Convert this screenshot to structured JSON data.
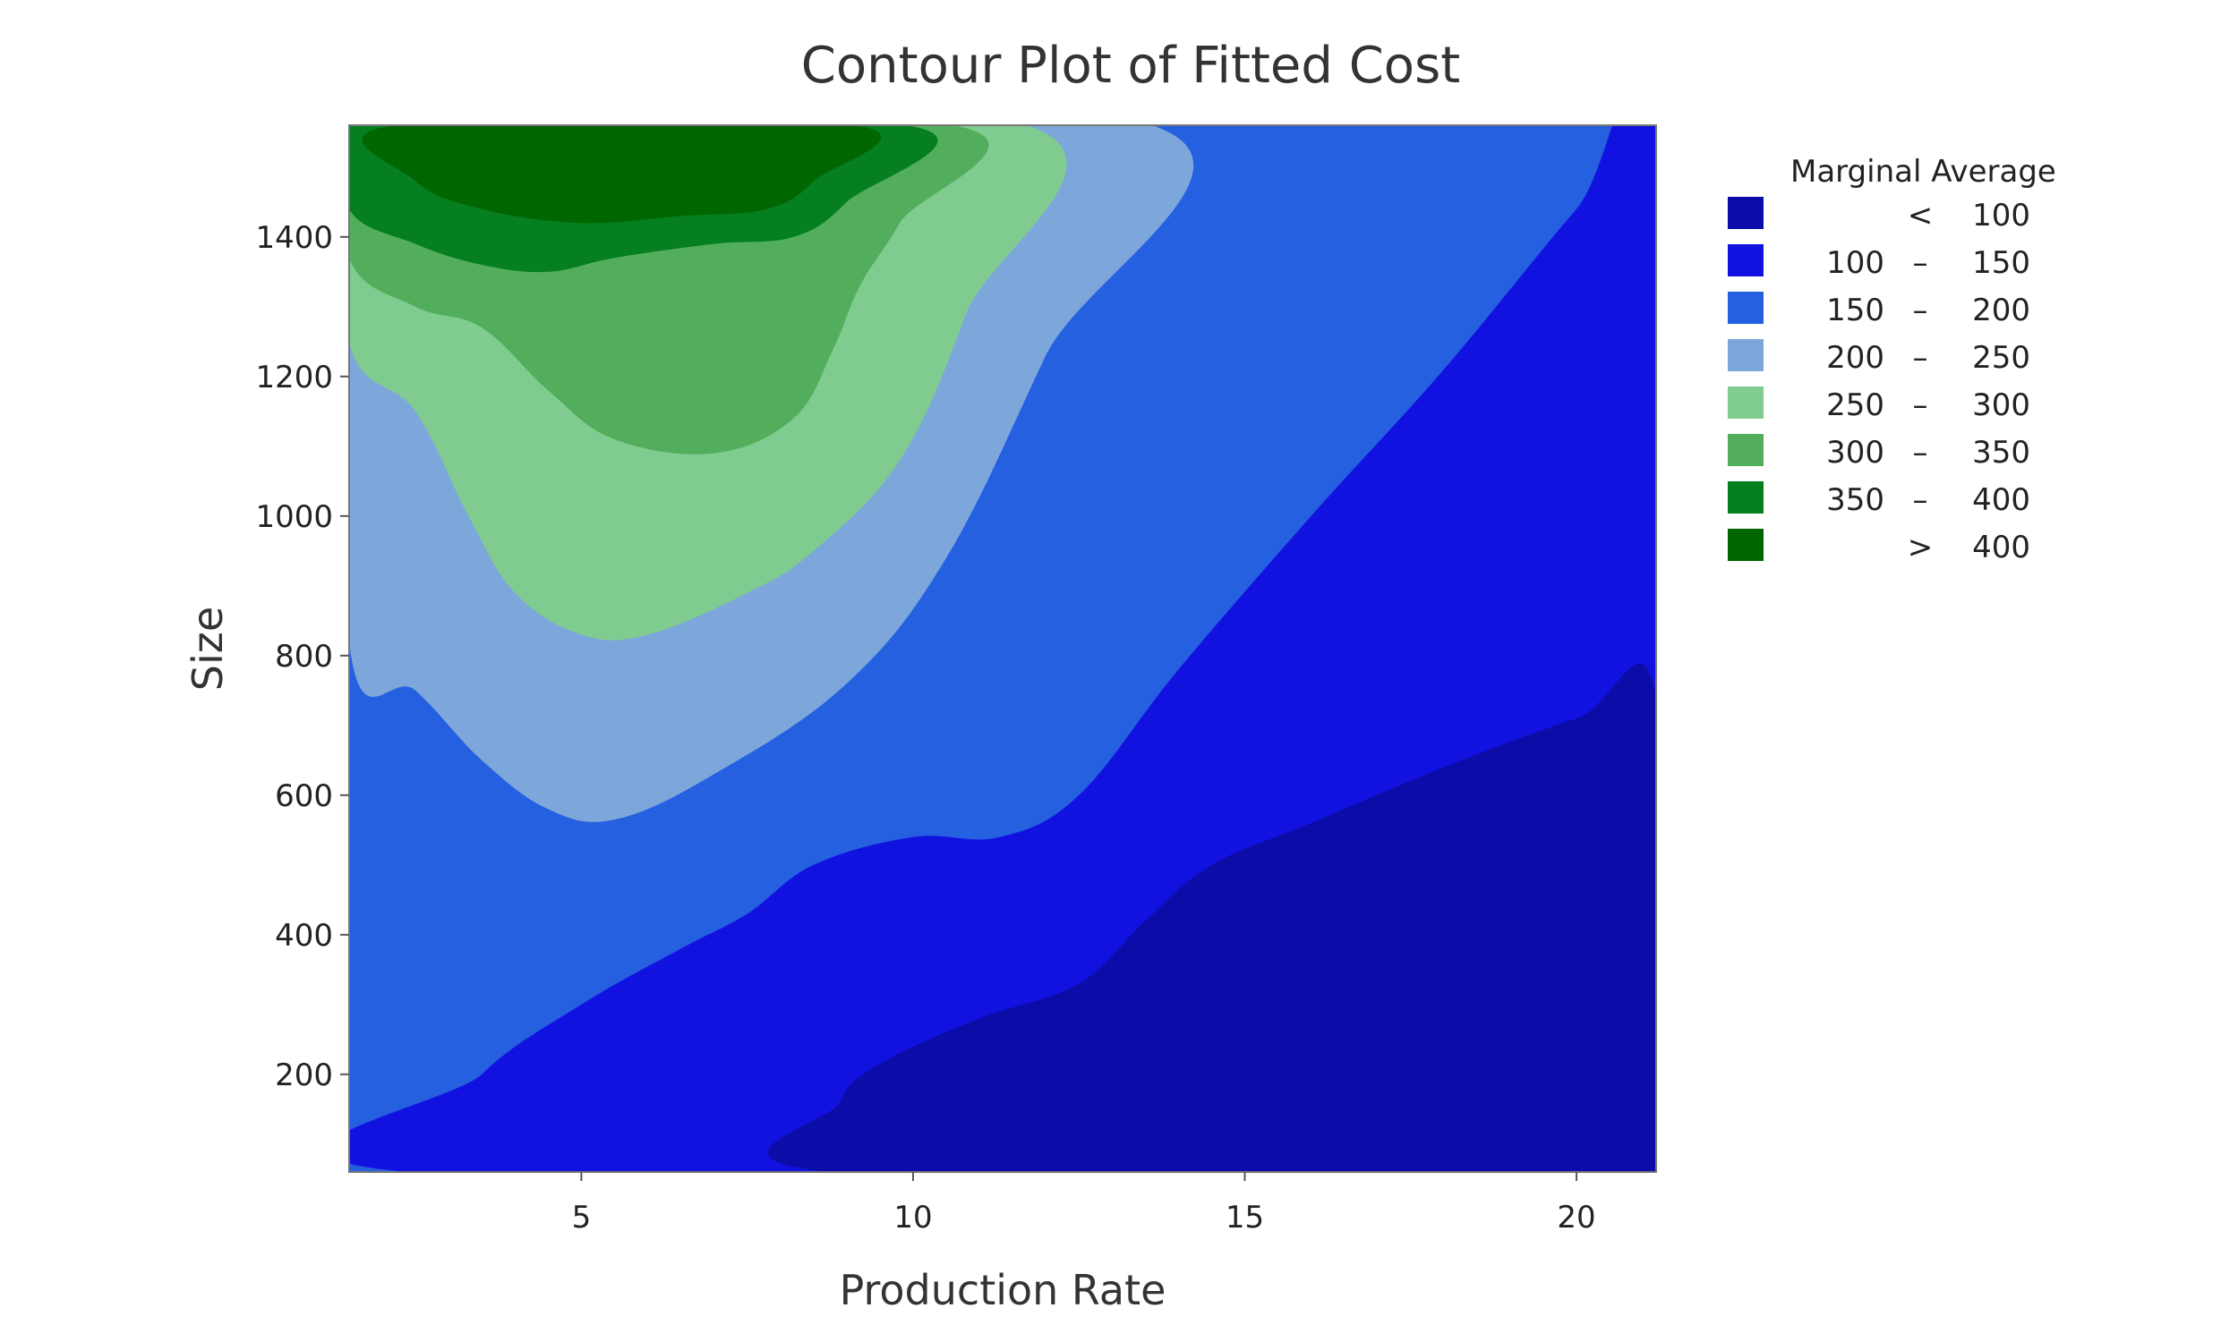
{
  "chart_data": {
    "type": "contour",
    "title": "Contour Plot of Fitted Cost",
    "xlabel": "Production Rate",
    "ylabel": "Size",
    "xlim": [
      1.5,
      21.2
    ],
    "ylim": [
      60,
      1560
    ],
    "x_ticks": [
      5,
      10,
      15,
      20
    ],
    "y_ticks": [
      200,
      400,
      600,
      800,
      1000,
      1200,
      1400
    ],
    "legend": {
      "title": "Marginal Average",
      "position": "right",
      "entries": [
        {
          "op": "<",
          "low": "",
          "high": "100",
          "color": "#0c0ca8"
        },
        {
          "op": "–",
          "low": "100",
          "high": "150",
          "color": "#1212e0"
        },
        {
          "op": "–",
          "low": "150",
          "high": "200",
          "color": "#2460e0"
        },
        {
          "op": "–",
          "low": "200",
          "high": "250",
          "color": "#7da7da"
        },
        {
          "op": "–",
          "low": "250",
          "high": "300",
          "color": "#80cc90"
        },
        {
          "op": "–",
          "low": "300",
          "high": "350",
          "color": "#52ae5c"
        },
        {
          "op": "–",
          "low": "350",
          "high": "400",
          "color": "#057f1f"
        },
        {
          "op": ">",
          "low": "",
          "high": "400",
          "color": "#006600"
        }
      ]
    },
    "regions": [
      {
        "level": "150 – 200",
        "color": "#2460e0",
        "points": [
          [
            1.5,
            60
          ],
          [
            21.2,
            60
          ],
          [
            21.2,
            1560
          ],
          [
            1.5,
            1560
          ]
        ]
      },
      {
        "level": "200 – 250",
        "color": "#7da7da",
        "points": [
          [
            1.5,
            820
          ],
          [
            2.5,
            750
          ],
          [
            3.5,
            650
          ],
          [
            4.5,
            580
          ],
          [
            5.5,
            565
          ],
          [
            7,
            630
          ],
          [
            9,
            760
          ],
          [
            10.5,
            940
          ],
          [
            12,
            1230
          ],
          [
            13.6,
            1560
          ],
          [
            1.5,
            1560
          ]
        ]
      },
      {
        "level": "250 – 300",
        "color": "#80cc90",
        "points": [
          [
            1.5,
            1250
          ],
          [
            2.5,
            1150
          ],
          [
            3.3,
            1000
          ],
          [
            4,
            890
          ],
          [
            5,
            830
          ],
          [
            6,
            830
          ],
          [
            7.5,
            890
          ],
          [
            8.5,
            950
          ],
          [
            9.8,
            1080
          ],
          [
            10.8,
            1290
          ],
          [
            11.7,
            1560
          ],
          [
            1.5,
            1560
          ]
        ]
      },
      {
        "level": "300 – 350",
        "color": "#52ae5c",
        "points": [
          [
            1.5,
            1370
          ],
          [
            2.5,
            1300
          ],
          [
            3.5,
            1270
          ],
          [
            4.5,
            1180
          ],
          [
            5.5,
            1110
          ],
          [
            7,
            1090
          ],
          [
            8.2,
            1140
          ],
          [
            8.8,
            1240
          ],
          [
            9.2,
            1330
          ],
          [
            9.8,
            1420
          ],
          [
            10.6,
            1560
          ],
          [
            1.5,
            1560
          ]
        ]
      },
      {
        "level": "350 – 400",
        "color": "#057f1f",
        "points": [
          [
            1.5,
            1440
          ],
          [
            2.5,
            1390
          ],
          [
            3.5,
            1360
          ],
          [
            4.5,
            1350
          ],
          [
            5.5,
            1370
          ],
          [
            7,
            1390
          ],
          [
            8.2,
            1400
          ],
          [
            9,
            1450
          ],
          [
            9.9,
            1560
          ],
          [
            1.5,
            1560
          ]
        ]
      },
      {
        "level": "> 400",
        "color": "#006600",
        "points": [
          [
            2.2,
            1560
          ],
          [
            2.5,
            1480
          ],
          [
            3.5,
            1440
          ],
          [
            5,
            1420
          ],
          [
            6.5,
            1430
          ],
          [
            7.8,
            1440
          ],
          [
            8.5,
            1480
          ],
          [
            9.1,
            1560
          ]
        ]
      },
      {
        "level": "100 – 150",
        "color": "#1212e0",
        "points": [
          [
            2.4,
            60
          ],
          [
            3.5,
            200
          ],
          [
            5,
            300
          ],
          [
            6.5,
            380
          ],
          [
            7.5,
            430
          ],
          [
            8.5,
            500
          ],
          [
            10,
            540
          ],
          [
            11.3,
            540
          ],
          [
            12.5,
            600
          ],
          [
            14,
            780
          ],
          [
            16,
            1000
          ],
          [
            18,
            1210
          ],
          [
            20,
            1440
          ],
          [
            21.2,
            1560
          ],
          [
            21.2,
            60
          ]
        ]
      },
      {
        "level": "< 100",
        "color": "#0c0ca8",
        "points": [
          [
            8.8,
            60
          ],
          [
            8.9,
            160
          ],
          [
            9.5,
            215
          ],
          [
            11,
            280
          ],
          [
            12.5,
            330
          ],
          [
            13.5,
            420
          ],
          [
            14.5,
            500
          ],
          [
            16,
            560
          ],
          [
            18,
            640
          ],
          [
            20,
            710
          ],
          [
            21.2,
            740
          ],
          [
            21.2,
            60
          ]
        ]
      }
    ]
  }
}
